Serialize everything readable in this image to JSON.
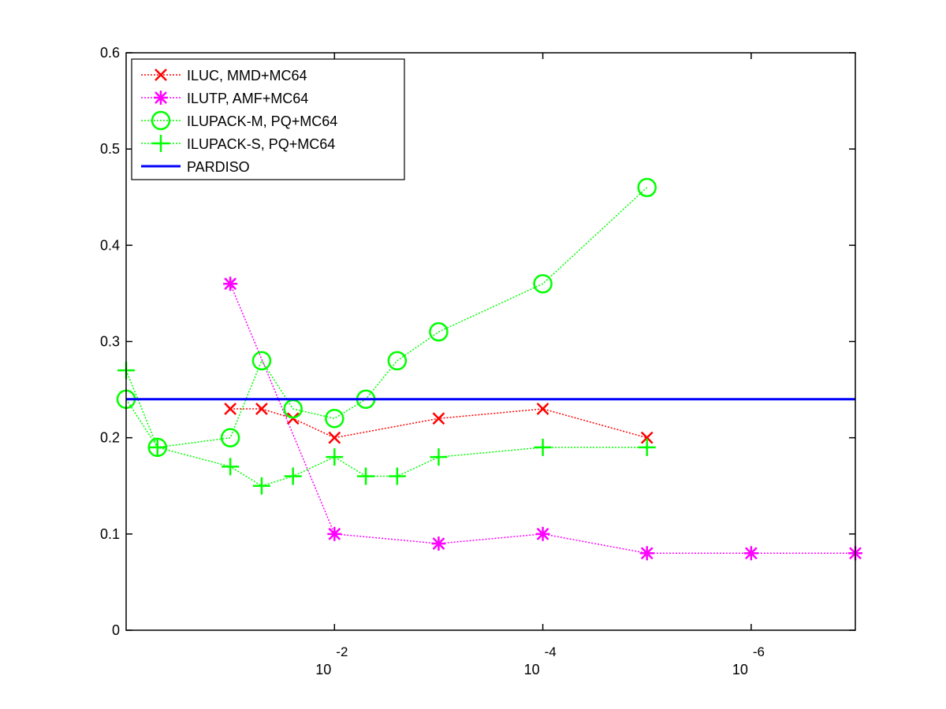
{
  "chart_data": {
    "type": "line",
    "title": "",
    "xlabel": "",
    "ylabel": "",
    "x_scale": "log",
    "x_direction": "decreasing",
    "xlim": [
      1,
      1e-07
    ],
    "ylim": [
      0,
      0.6
    ],
    "yticks": [
      0,
      0.1,
      0.2,
      0.3,
      0.4,
      0.5,
      0.6
    ],
    "yticklabels": [
      "0",
      "0.1",
      "0.2",
      "0.3",
      "0.4",
      "0.5",
      "0.6"
    ],
    "xticks": [
      {
        "value": 0.01,
        "base": "10",
        "exponent": "-2"
      },
      {
        "value": 0.0001,
        "base": "10",
        "exponent": "-4"
      },
      {
        "value": 1e-06,
        "base": "10",
        "exponent": "-6"
      }
    ],
    "grid": false,
    "legend_position": "top-left",
    "series": [
      {
        "name": "ILUC, MMD+MC64",
        "color": "#ff0000",
        "marker": "x",
        "line": "dotted",
        "x": [
          0.1,
          0.05,
          0.025,
          0.01,
          0.001,
          0.0001,
          1e-05
        ],
        "y": [
          0.23,
          0.23,
          0.22,
          0.2,
          0.22,
          0.23,
          0.2
        ]
      },
      {
        "name": "ILUTP, AMF+MC64",
        "color": "#ff00ff",
        "marker": "asterisk",
        "line": "dotted",
        "x": [
          0.1,
          0.01,
          0.001,
          0.0001,
          1e-05,
          1e-06,
          1e-07
        ],
        "y": [
          0.36,
          0.1,
          0.09,
          0.1,
          0.08,
          0.08,
          0.08
        ]
      },
      {
        "name": "ILUPACK-M, PQ+MC64",
        "color": "#00ff00",
        "marker": "circle",
        "line": "dotted",
        "x": [
          1,
          0.5,
          0.1,
          0.05,
          0.025,
          0.01,
          0.005,
          0.0025,
          0.001,
          0.0001,
          1e-05
        ],
        "y": [
          0.24,
          0.19,
          0.2,
          0.28,
          0.23,
          0.22,
          0.24,
          0.28,
          0.31,
          0.36,
          0.46
        ]
      },
      {
        "name": "ILUPACK-S, PQ+MC64",
        "color": "#00ff00",
        "marker": "plus",
        "line": "dotted",
        "x": [
          1,
          0.5,
          0.1,
          0.05,
          0.025,
          0.01,
          0.005,
          0.0025,
          0.001,
          0.0001,
          1e-05
        ],
        "y": [
          0.27,
          0.19,
          0.17,
          0.15,
          0.16,
          0.18,
          0.16,
          0.16,
          0.18,
          0.19,
          0.19
        ]
      },
      {
        "name": "PARDISO",
        "color": "#0000ff",
        "marker": "none",
        "line": "solid",
        "x": [
          1,
          1e-07
        ],
        "y": [
          0.24,
          0.24
        ]
      }
    ]
  }
}
